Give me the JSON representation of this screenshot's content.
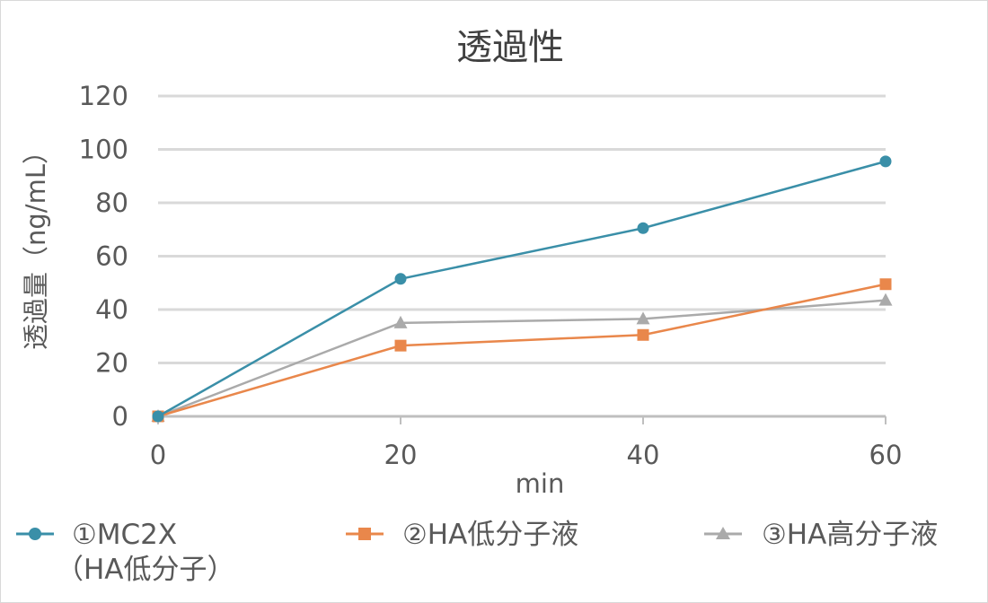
{
  "chart_data": {
    "type": "line",
    "title": "透過性",
    "xlabel": "min",
    "ylabel": "透過量（ng/mL）",
    "categories": [
      "0",
      "20",
      "40",
      "60"
    ],
    "x": [
      0,
      20,
      40,
      60
    ],
    "ylim": [
      0,
      120
    ],
    "yticks": [
      "0",
      "20",
      "40",
      "60",
      "80",
      "100",
      "120"
    ],
    "grid": true,
    "legend_position": "bottom",
    "series": [
      {
        "name": "①MC2X（HA低分子）",
        "name_line1": "①MC2X",
        "name_line2": "（HA低分子）",
        "values": [
          0,
          51.5,
          70.5,
          95.5
        ],
        "color": "#3a8fa8",
        "marker": "circle"
      },
      {
        "name": "②HA低分子液",
        "values": [
          0,
          26.5,
          30.5,
          49.5
        ],
        "color": "#e9874b",
        "marker": "square"
      },
      {
        "name": "③HA高分子液",
        "values": [
          0,
          35,
          36.5,
          43.5
        ],
        "color": "#aaaaaa",
        "marker": "triangle"
      }
    ]
  }
}
